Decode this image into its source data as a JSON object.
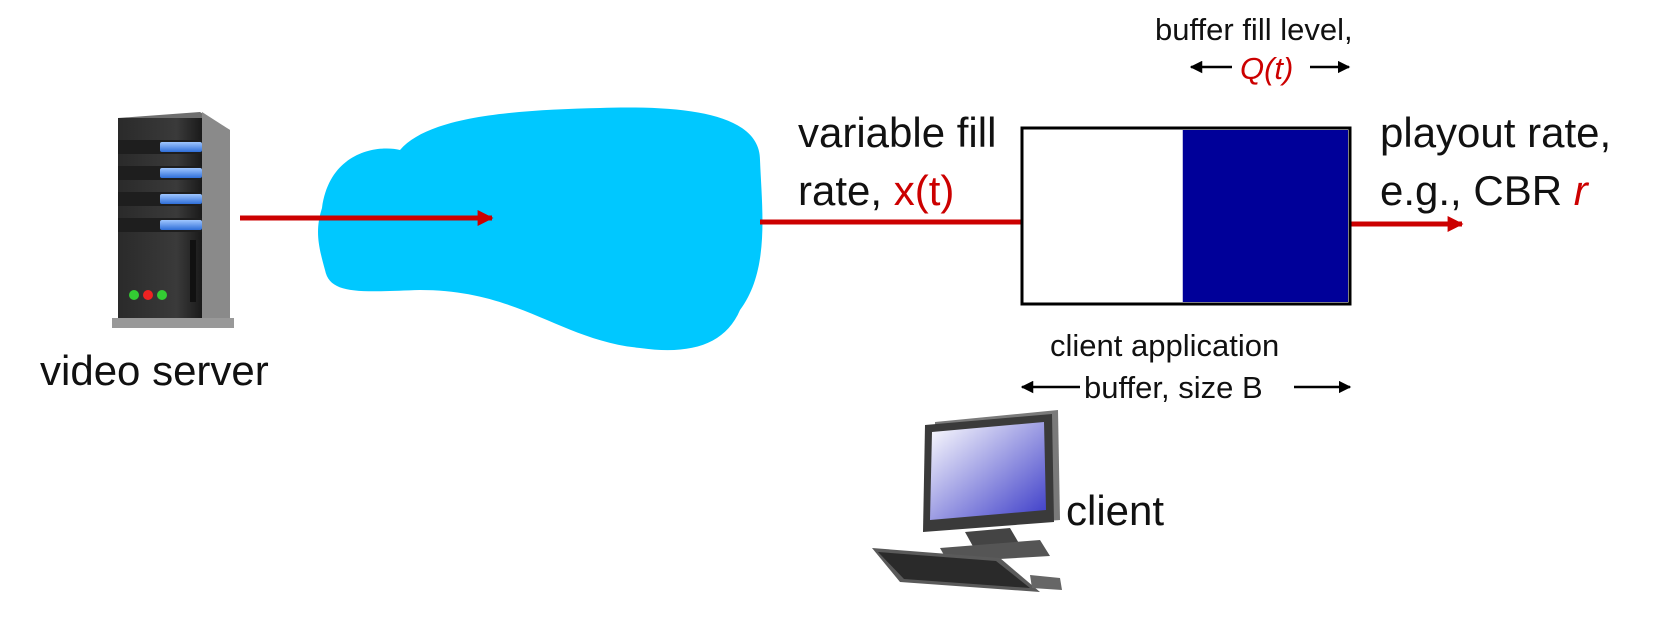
{
  "labels": {
    "video_server": "video server",
    "fill_line1": "variable fill",
    "fill_line2_prefix": "rate, ",
    "fill_rate_var": "x(t)",
    "buffer_fill_level": "buffer fill level,",
    "queue_var": "Q(t)",
    "playout_line1": "playout rate,",
    "playout_line2_prefix": "e.g., CBR ",
    "playout_var": "r",
    "client_application": "client  application",
    "buffer_size": "buffer, size B",
    "client": "client"
  },
  "colors": {
    "arrow": "#cc0000",
    "cloud": "#00c8ff",
    "buffer_fill": "#000099",
    "text": "#111111",
    "highlight_text": "#cc0000"
  },
  "buffer": {
    "fill_fraction": 0.51
  }
}
